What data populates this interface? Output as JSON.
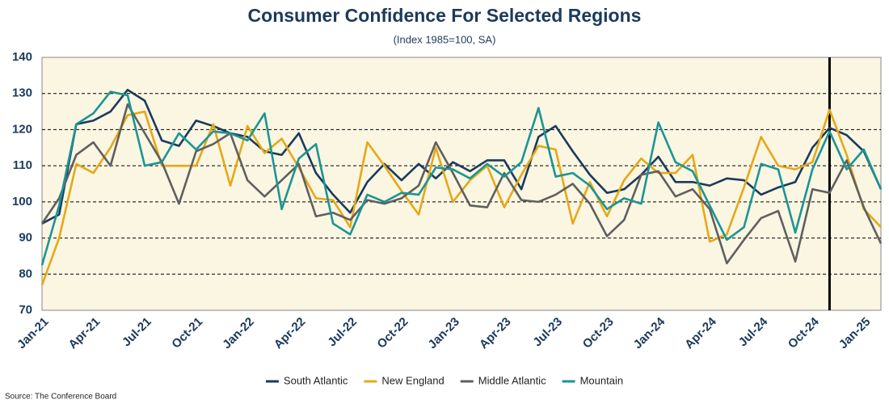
{
  "chart_data": {
    "type": "line",
    "title": "Consumer Confidence For Selected Regions",
    "subtitle": "(Index 1985=100, SA)",
    "source": "Source: The Conference Board",
    "categories": [
      "Jan-21",
      null,
      null,
      "Apr-21",
      null,
      null,
      "Jul-21",
      null,
      null,
      "Oct-21",
      null,
      null,
      "Jan-22",
      null,
      null,
      "Apr-22",
      null,
      null,
      "Jul-22",
      null,
      null,
      "Oct-22",
      null,
      null,
      "Jan-23",
      null,
      null,
      "Apr-23",
      null,
      null,
      "Jul-23",
      null,
      null,
      "Oct-23",
      null,
      null,
      "Jan-24",
      null,
      null,
      "Apr-24",
      null,
      null,
      "Jul-24",
      null,
      null,
      "Oct-24",
      null,
      null,
      "Jan-25",
      null
    ],
    "series": [
      {
        "name": "South Atlantic",
        "color": "#1b3a5c",
        "values": [
          94,
          96.5,
          121.5,
          122.5,
          125,
          131,
          128,
          117,
          115.5,
          122.5,
          121,
          119,
          118,
          114,
          113,
          119,
          108,
          102,
          97,
          105.5,
          110.5,
          106,
          110.5,
          106.5,
          111,
          108.5,
          111.5,
          111.5,
          103.5,
          118,
          121,
          114,
          107.5,
          102.5,
          103.5,
          107.5,
          112.5,
          105.5,
          105.5,
          104.5,
          106.5,
          106,
          102,
          104,
          105.5,
          115,
          120.5,
          118.5,
          114,
          103.5
        ]
      },
      {
        "name": "New England",
        "color": "#e6a817",
        "values": [
          77,
          90,
          110.5,
          108,
          115,
          124,
          125,
          110,
          110,
          110,
          121.5,
          104.5,
          121,
          113.5,
          117.5,
          109.5,
          101,
          100.5,
          93,
          116.5,
          110,
          103,
          96.5,
          115,
          100,
          106,
          110,
          98.5,
          107.5,
          115.5,
          114.5,
          94,
          105.5,
          96,
          106,
          112,
          108,
          108,
          113,
          89,
          91,
          104,
          118,
          110,
          109,
          111,
          125.5,
          113,
          98,
          93
        ]
      },
      {
        "name": "Middle Atlantic",
        "color": "#5f5f5f",
        "values": [
          94,
          101,
          113,
          116.5,
          110,
          127,
          119,
          111,
          99.5,
          114,
          116,
          119,
          106,
          101.5,
          106,
          110.5,
          96,
          97,
          95,
          100.5,
          99.5,
          101,
          104.5,
          116.5,
          108,
          99,
          98.5,
          108,
          100.5,
          100,
          102,
          105,
          99.5,
          90.5,
          95,
          107.5,
          108.5,
          101.5,
          103.5,
          98,
          83,
          89.5,
          95.5,
          97.5,
          83.5,
          103.5,
          102.5,
          111.5,
          98.5,
          88.5
        ]
      },
      {
        "name": "Mountain",
        "color": "#1a9595",
        "values": [
          82.5,
          99,
          121.5,
          124.5,
          130.5,
          129.5,
          110,
          111,
          119,
          114.5,
          119.5,
          119,
          117,
          124.5,
          98,
          112,
          116,
          94,
          91,
          102,
          100,
          102.5,
          102,
          109.5,
          109,
          106.5,
          110.5,
          107,
          111,
          126,
          107,
          108,
          104.5,
          98,
          101,
          99.5,
          122,
          111,
          108.5,
          99,
          89.5,
          93,
          110.5,
          109,
          91.5,
          109,
          119.5,
          109,
          114.5,
          103.5
        ]
      }
    ],
    "ylim": [
      70,
      140
    ],
    "yticks": [
      70,
      80,
      90,
      100,
      110,
      120,
      130,
      140
    ],
    "grid": true,
    "legend": "bottom",
    "vline": 46
  }
}
